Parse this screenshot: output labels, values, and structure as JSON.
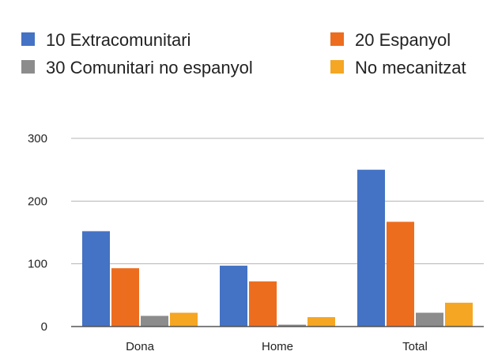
{
  "chart_data": {
    "type": "bar",
    "title": "",
    "xlabel": "",
    "ylabel": "",
    "categories": [
      "Dona",
      "Home",
      "Total"
    ],
    "series": [
      {
        "name": "10 Extracomunitari",
        "color": "#4472C4",
        "values": [
          152,
          97,
          250
        ]
      },
      {
        "name": "20 Espanyol",
        "color": "#ED6D1F",
        "values": [
          93,
          72,
          167
        ]
      },
      {
        "name": "30 Comunitari no espanyol",
        "color": "#8C8C8C",
        "values": [
          17,
          3,
          22
        ]
      },
      {
        "name": "No mecanitzat",
        "color": "#F5A623",
        "values": [
          22,
          15,
          38
        ]
      }
    ],
    "ylim": [
      0,
      300
    ],
    "yticks": [
      "0",
      "100",
      "200",
      "300"
    ],
    "ytick_values": [
      0,
      100,
      200,
      300
    ],
    "grid": true,
    "legend_position": "top"
  }
}
